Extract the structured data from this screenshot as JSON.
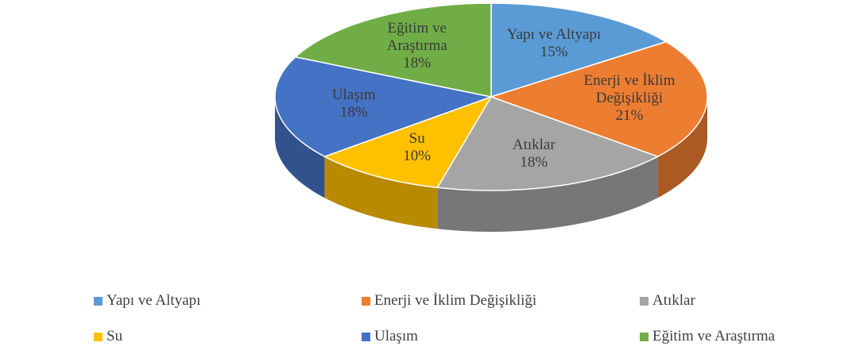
{
  "chart_data": {
    "type": "pie3d",
    "categories": [
      "Yapı ve Altyapı",
      "Enerji ve İklim Değişikliği",
      "Atıklar",
      "Su",
      "Ulaşım",
      "Eğitim ve Araştırma"
    ],
    "values": [
      15,
      21,
      18,
      10,
      18,
      18
    ],
    "value_labels": [
      "15%",
      "21%",
      "18%",
      "10%",
      "18%",
      "18%"
    ],
    "colors": [
      "#5b9bd5",
      "#ed7d31",
      "#a5a5a5",
      "#ffc000",
      "#4472c4",
      "#70ad47"
    ],
    "legend": "bottom"
  }
}
